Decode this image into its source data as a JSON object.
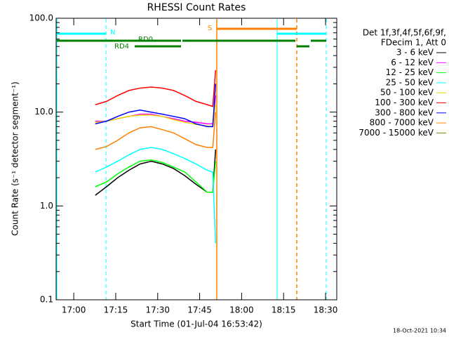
{
  "chart_data": {
    "type": "line",
    "title": "RHESSI Count Rates",
    "x_label": "Start Time (01-Jul-04 16:53:42)",
    "y_label": "Count Rate (s⁻¹ detector segment⁻¹)",
    "legend_header": [
      "Det 1f,3f,4f,5f,6f,9f,",
      "FDecim 1, Att 0"
    ],
    "timestamp": "18-Oct-2021 10:34",
    "flags": [
      "N",
      "S",
      "RD0",
      "RD4"
    ],
    "log_y": true,
    "xlim": [
      0,
      100.3
    ],
    "ylim": [
      0.1,
      100
    ],
    "xticks": [
      {
        "value": 6.3,
        "label": "17:00"
      },
      {
        "value": 21.3,
        "label": "17:15"
      },
      {
        "value": 36.3,
        "label": "17:30"
      },
      {
        "value": 51.3,
        "label": "17:45"
      },
      {
        "value": 66.3,
        "label": "18:00"
      },
      {
        "value": 81.3,
        "label": "18:15"
      },
      {
        "value": 96.3,
        "label": "18:30"
      }
    ],
    "yticks": [
      0.1,
      {
        "value": 1,
        "label": "1.0"
      },
      {
        "value": 10,
        "label": "10.0"
      },
      {
        "value": 100,
        "label": "100.0"
      }
    ],
    "x": [
      14,
      18,
      22,
      26,
      30,
      34,
      38,
      42,
      46,
      50,
      54,
      56,
      57
    ],
    "series": [
      {
        "name": "3 - 6 keV",
        "color": "#000000",
        "values": [
          1.3,
          1.6,
          2,
          2.4,
          2.8,
          3,
          2.8,
          2.5,
          2.1,
          1.7,
          1.4,
          1.4,
          4
        ]
      },
      {
        "name": "6 - 12 keV",
        "color": "#ff00ff",
        "values": [
          8,
          8,
          8.5,
          9,
          9.5,
          9.5,
          9,
          8.5,
          8,
          7.8,
          7.5,
          7.5,
          15
        ]
      },
      {
        "name": "12 - 25 keV",
        "color": "#00ff00",
        "values": [
          1.6,
          1.8,
          2.2,
          2.6,
          3,
          3.1,
          2.9,
          2.6,
          2.3,
          1.8,
          1.4,
          1.4,
          3
        ]
      },
      {
        "name": "25 - 50 keV",
        "color": "#00ffff",
        "values": [
          2.3,
          2.6,
          3,
          3.5,
          4,
          4.2,
          4,
          3.6,
          3.2,
          2.8,
          2.4,
          2.3,
          0.4
        ]
      },
      {
        "name": "50 - 100 keV",
        "color": "#e8d800",
        "values": [
          7.8,
          8,
          8.5,
          9,
          9.3,
          9.3,
          9,
          8.3,
          7.8,
          7.4,
          7.1,
          7,
          12
        ]
      },
      {
        "name": "100 - 300 keV",
        "color": "#ff0000",
        "values": [
          12,
          13,
          15,
          17,
          18,
          18.5,
          18,
          17,
          15,
          13,
          12,
          11.5,
          28
        ]
      },
      {
        "name": "300 - 800 keV",
        "color": "#0000ff",
        "values": [
          7.5,
          8,
          9,
          10,
          10.5,
          10,
          9.5,
          9,
          8.5,
          7.5,
          7,
          7,
          20
        ]
      },
      {
        "name": "800 - 7000 keV",
        "color": "#ff8000",
        "values": [
          4,
          4.3,
          5,
          6,
          6.8,
          7,
          6.5,
          6,
          5.2,
          4.5,
          4.2,
          4.2,
          10
        ]
      },
      {
        "name": "7000 - 15000 keV",
        "color": "#808000",
        "values": [
          null,
          null,
          null,
          null,
          null,
          null,
          null,
          null,
          null,
          null,
          null,
          null,
          null
        ]
      }
    ]
  }
}
